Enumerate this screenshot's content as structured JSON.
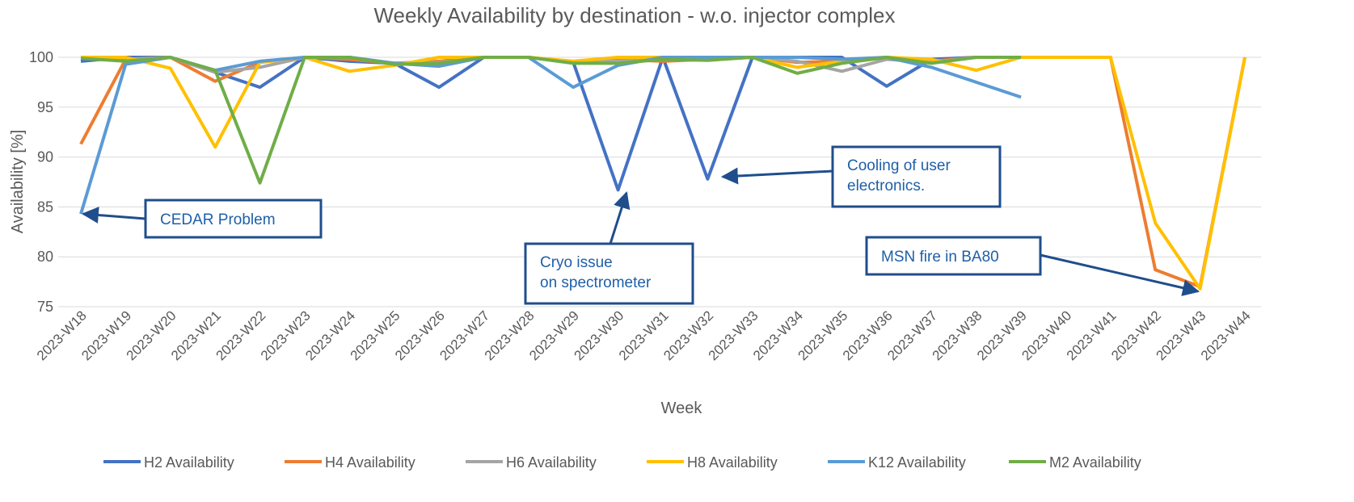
{
  "chart_data": {
    "type": "line",
    "title": "Weekly Availability by destination - w.o. injector complex",
    "x_label": "Week",
    "y_label": "Availability [%]",
    "categories": [
      "2023-W18",
      "2023-W19",
      "2023-W20",
      "2023-W21",
      "2023-W22",
      "2023-W23",
      "2023-W24",
      "2023-W25",
      "2023-W26",
      "2023-W27",
      "2023-W28",
      "2023-W29",
      "2023-W30",
      "2023-W31",
      "2023-W32",
      "2023-W33",
      "2023-W34",
      "2023-W35",
      "2023-W36",
      "2023-W37",
      "2023-W38",
      "2023-W39",
      "2023-W40",
      "2023-W41",
      "2023-W42",
      "2023-W43",
      "2023-W44"
    ],
    "ylim": [
      75,
      100
    ],
    "yticks": [
      75,
      80,
      85,
      90,
      95,
      100
    ],
    "grid": true,
    "legend": "bottom",
    "series": [
      {
        "name": "H2 Availability",
        "color": "#4472c4",
        "values": [
          99.6,
          100,
          100,
          98.5,
          97,
          100,
          99.6,
          99.4,
          97,
          100,
          100,
          99.5,
          86.7,
          100,
          87.8,
          100,
          100,
          100,
          97.1,
          99.8,
          100,
          100,
          null,
          null,
          null,
          null,
          null
        ]
      },
      {
        "name": "H4 Availability",
        "color": "#ed7d31",
        "values": [
          91.3,
          99.8,
          100,
          97.6,
          99.5,
          100,
          99.8,
          99.4,
          99.6,
          100,
          100,
          99.5,
          99.8,
          99.6,
          99.8,
          100,
          99.5,
          99.6,
          100,
          99.6,
          100,
          100,
          100,
          100,
          78.7,
          77,
          100
        ]
      },
      {
        "name": "H6 Availability",
        "color": "#a5a5a5",
        "values": [
          100,
          99.8,
          100,
          98.5,
          99,
          100,
          100,
          99.4,
          99.5,
          100,
          100,
          99.5,
          99.6,
          100,
          99.8,
          100,
          99.6,
          98.6,
          99.8,
          99.5,
          100,
          100,
          null,
          null,
          null,
          null,
          null
        ]
      },
      {
        "name": "H8 Availability",
        "color": "#ffc000",
        "values": [
          100,
          100,
          98.9,
          91,
          99.5,
          100,
          98.6,
          99.2,
          100,
          100,
          100,
          99.6,
          100,
          100,
          99.8,
          100,
          99,
          99.6,
          100,
          99.8,
          98.7,
          100,
          100,
          100,
          83.4,
          76.8,
          100
        ]
      },
      {
        "name": "K12 Availability",
        "color": "#5b9bd5",
        "values": [
          84.3,
          99.3,
          100,
          98.7,
          99.6,
          100,
          100,
          99.4,
          99.1,
          100,
          100,
          97,
          99.2,
          100,
          100,
          100,
          100,
          99.8,
          100,
          99,
          97.5,
          96,
          null,
          null,
          null,
          null,
          null
        ]
      },
      {
        "name": "M2 Availability",
        "color": "#70ad47",
        "values": [
          99.9,
          99.6,
          100,
          98.7,
          87.4,
          100,
          100,
          99.3,
          99.4,
          100,
          100,
          99.4,
          99.4,
          99.8,
          99.7,
          100,
          98.4,
          99.4,
          100,
          99.4,
          100,
          100,
          null,
          null,
          null,
          null,
          null
        ]
      }
    ],
    "annotations": [
      {
        "lines": [
          "CEDAR Problem"
        ]
      },
      {
        "lines": [
          "Cryo issue",
          "on spectrometer"
        ]
      },
      {
        "lines": [
          "Cooling of user",
          "electronics."
        ]
      },
      {
        "lines": [
          "MSN fire in BA80"
        ]
      }
    ]
  }
}
